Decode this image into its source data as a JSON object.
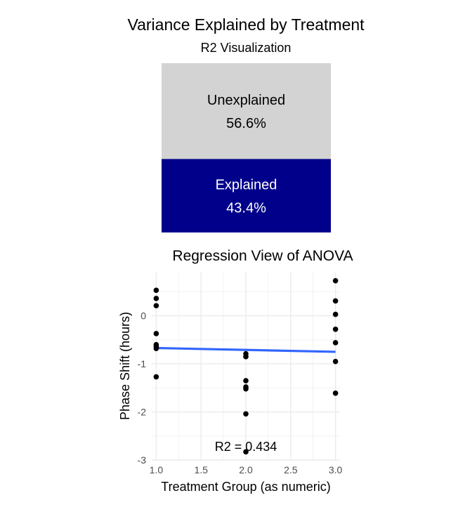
{
  "chart_data": [
    {
      "type": "bar",
      "title": "Variance Explained by Treatment",
      "subtitle": "R2 Visualization",
      "segments": [
        {
          "label": "Unexplained",
          "value_label": "56.6%",
          "value": 56.6,
          "color": "#d3d3d3",
          "text_color": "#000000"
        },
        {
          "label": "Explained",
          "value_label": "43.4%",
          "value": 43.4,
          "color": "#00008b",
          "text_color": "#ffffff"
        }
      ]
    },
    {
      "type": "scatter",
      "title": "Regression View of ANOVA",
      "xlabel": "Treatment Group (as numeric)",
      "ylabel": "Phase Shift (hours)",
      "xlim": [
        0.95,
        3.05
      ],
      "ylim": [
        -3.0,
        0.9
      ],
      "xticks": [
        1.0,
        1.5,
        2.0,
        2.5,
        3.0
      ],
      "xtick_labels": [
        "1.0",
        "1.5",
        "2.0",
        "2.5",
        "3.0"
      ],
      "yticks": [
        -3,
        -2,
        -1,
        0
      ],
      "ytick_labels": [
        "-3",
        "-2",
        "-1",
        "0"
      ],
      "points": [
        {
          "x": 1,
          "y": 0.53
        },
        {
          "x": 1,
          "y": 0.36
        },
        {
          "x": 1,
          "y": 0.21
        },
        {
          "x": 1,
          "y": -0.37
        },
        {
          "x": 1,
          "y": -0.6
        },
        {
          "x": 1,
          "y": -0.64
        },
        {
          "x": 1,
          "y": -0.68
        },
        {
          "x": 1,
          "y": -1.27
        },
        {
          "x": 2,
          "y": -0.79
        },
        {
          "x": 2,
          "y": -0.85
        },
        {
          "x": 2,
          "y": -1.35
        },
        {
          "x": 2,
          "y": -1.48
        },
        {
          "x": 2,
          "y": -1.52
        },
        {
          "x": 2,
          "y": -2.04
        },
        {
          "x": 2,
          "y": -2.83
        },
        {
          "x": 3,
          "y": 0.73
        },
        {
          "x": 3,
          "y": 0.31
        },
        {
          "x": 3,
          "y": 0.03
        },
        {
          "x": 3,
          "y": -0.28
        },
        {
          "x": 3,
          "y": -0.56
        },
        {
          "x": 3,
          "y": -0.95
        },
        {
          "x": 3,
          "y": -1.61
        }
      ],
      "fit_line": {
        "x": [
          1,
          3
        ],
        "y": [
          -0.67,
          -0.75
        ],
        "color": "#3366ff"
      },
      "annotation": {
        "text": "R2 = 0.434",
        "x": 2.0,
        "y": -2.72
      },
      "point_color": "#000000",
      "grid": true
    }
  ]
}
